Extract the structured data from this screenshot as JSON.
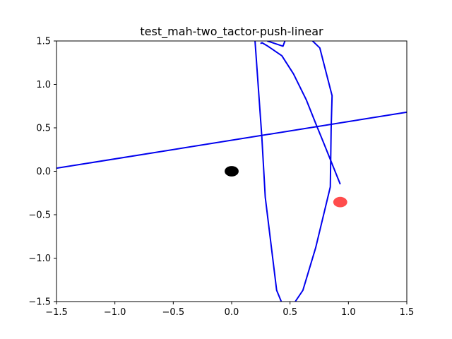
{
  "chart_data": {
    "type": "line",
    "title": "test_mah-two_tactor-push-linear",
    "xlabel": "",
    "ylabel": "",
    "xlim": [
      -1.5,
      1.5
    ],
    "ylim": [
      -1.5,
      1.5
    ],
    "grid": false,
    "xticks": [
      -1.5,
      -1.0,
      -0.5,
      0.0,
      0.5,
      1.0,
      1.5
    ],
    "yticks": [
      -1.5,
      -1.0,
      -0.5,
      0.0,
      0.5,
      1.0,
      1.5
    ],
    "xtick_labels": [
      "−1.5",
      "−1.0",
      "−0.5",
      "0.0",
      "0.5",
      "1.0",
      "1.5"
    ],
    "ytick_labels": [
      "−1.5",
      "−1.0",
      "−0.5",
      "0.0",
      "0.5",
      "1.0",
      "1.5"
    ],
    "series": [
      {
        "color": "#0000ee",
        "x": [
          -1.5,
          1.5
        ],
        "y": [
          0.035,
          0.68
        ]
      },
      {
        "color": "#0000ee",
        "x": [
          0.2,
          0.258,
          0.288,
          0.385,
          0.425,
          0.475,
          0.545,
          0.61,
          0.72,
          0.845,
          0.852,
          0.86,
          0.755,
          0.685,
          0.617
        ],
        "y": [
          1.5,
          0.4,
          -0.3,
          -1.37,
          -1.5,
          -1.65,
          -1.5,
          -1.37,
          -0.88,
          -0.18,
          0.5,
          0.87,
          1.42,
          1.51,
          1.59
        ]
      },
      {
        "color": "#0000ee",
        "x": [
          0.247,
          0.26,
          0.31,
          0.43,
          0.53,
          0.64,
          0.72,
          0.79,
          0.93
        ],
        "y": [
          1.47,
          1.48,
          1.44,
          1.33,
          1.12,
          0.82,
          0.55,
          0.32,
          -0.15
        ]
      },
      {
        "color": "#0000ee",
        "x": [
          0.305,
          0.44,
          0.49
        ],
        "y": [
          1.5,
          1.44,
          1.62
        ]
      }
    ],
    "points": [
      {
        "x": 0.0,
        "y": 0.0,
        "rx": 0.06,
        "ry": 0.06,
        "color": "#000000",
        "opacity": 1.0
      },
      {
        "x": 0.93,
        "y": -0.355,
        "rx": 0.06,
        "ry": 0.06,
        "color": "#ff0000",
        "opacity": 0.7
      }
    ]
  }
}
